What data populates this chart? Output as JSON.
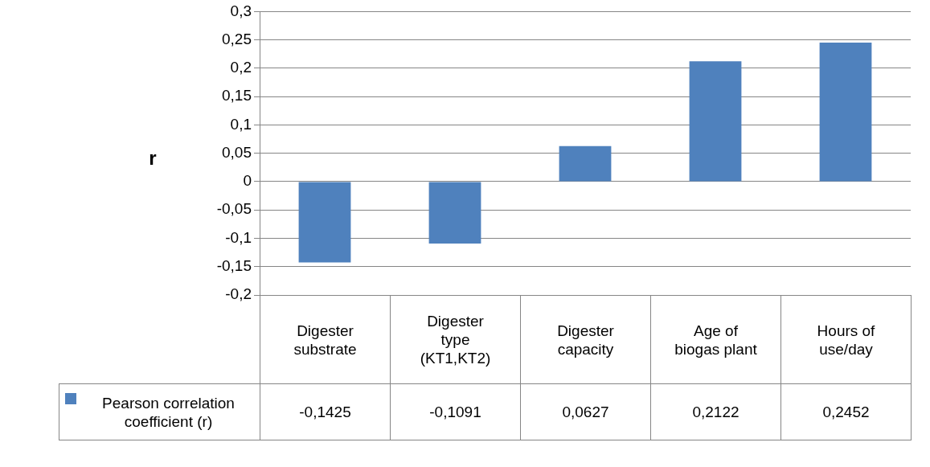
{
  "chart_data": {
    "type": "bar",
    "ylabel": "r",
    "categories": [
      "Digester substrate",
      "Digester type (KT1,KT2)",
      "Digester capacity",
      "Age of biogas plant",
      "Hours of use/day"
    ],
    "series": [
      {
        "name": "Pearson correlation coefficient (r)",
        "color": "#4f81bd",
        "values": [
          -0.1425,
          -0.1091,
          0.0627,
          0.2122,
          0.2452
        ],
        "value_labels": [
          "-0,1425",
          "-0,1091",
          "0,0627",
          "0,2122",
          "0,2452"
        ]
      }
    ],
    "ylim": [
      -0.2,
      0.3
    ],
    "yticks": [
      {
        "value": -0.2,
        "label": "-0,2"
      },
      {
        "value": -0.15,
        "label": "-0,15"
      },
      {
        "value": -0.1,
        "label": "-0,1"
      },
      {
        "value": -0.05,
        "label": "-0,05"
      },
      {
        "value": 0,
        "label": "0"
      },
      {
        "value": 0.05,
        "label": "0,05"
      },
      {
        "value": 0.1,
        "label": "0,1"
      },
      {
        "value": 0.15,
        "label": "0,15"
      },
      {
        "value": 0.2,
        "label": "0,2"
      },
      {
        "value": 0.25,
        "label": "0,25"
      },
      {
        "value": 0.3,
        "label": "0,3"
      }
    ],
    "grid": "y",
    "legend": "bottom left"
  }
}
